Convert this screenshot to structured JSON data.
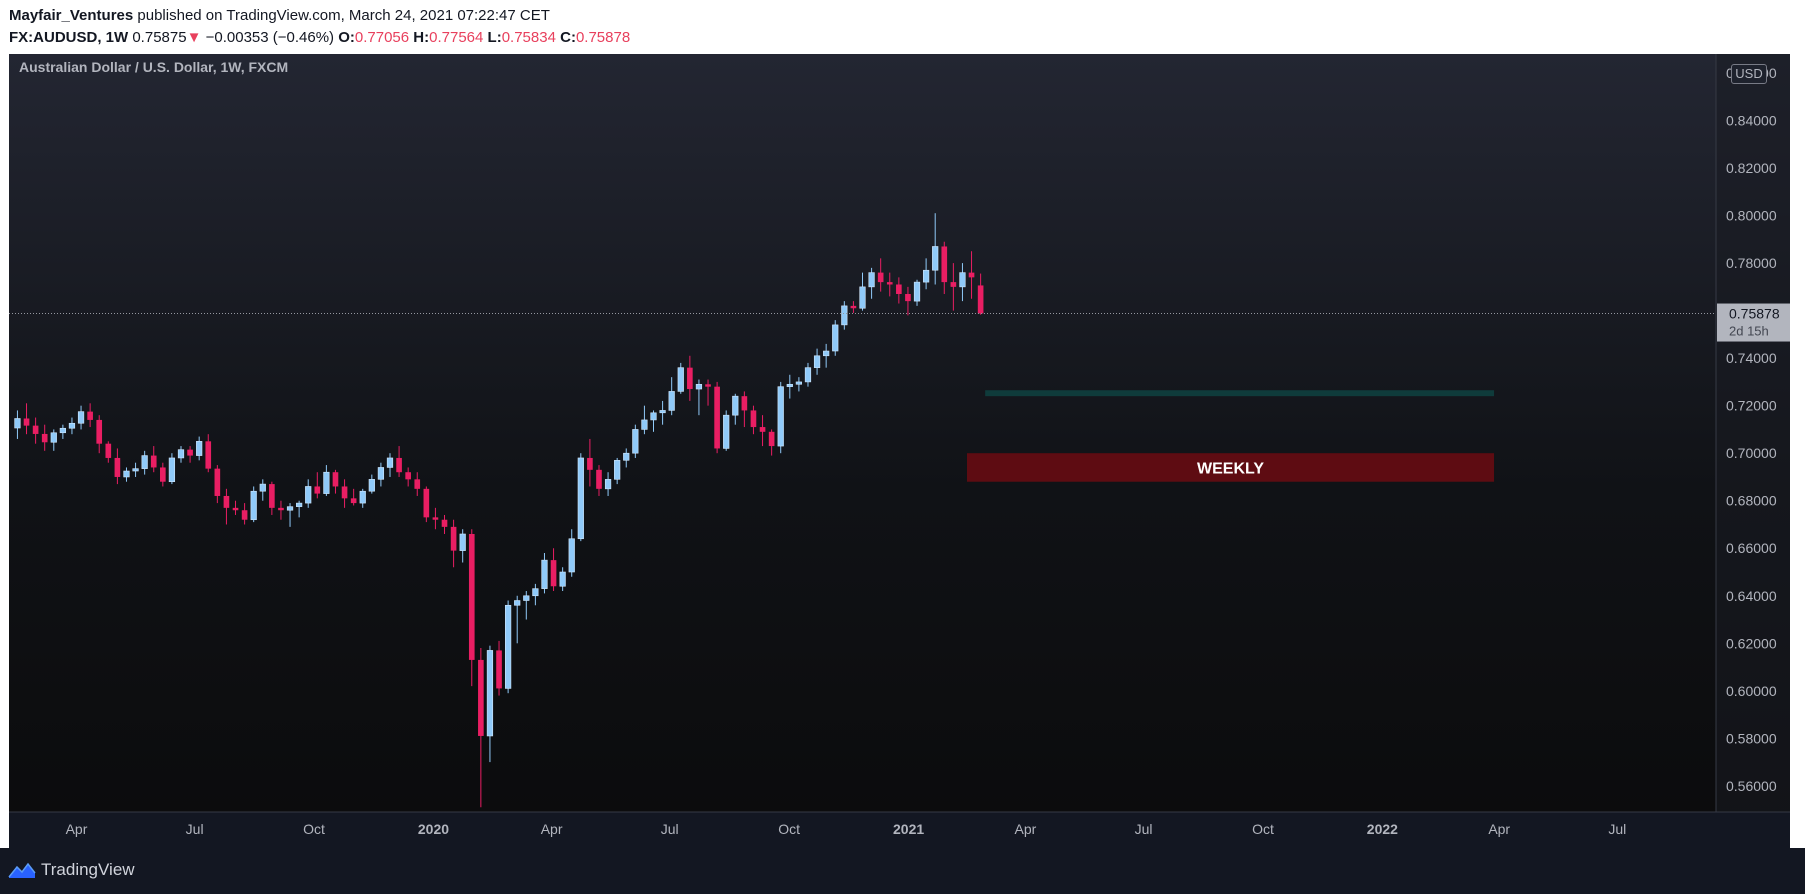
{
  "header": {
    "publisher": "Mayfair_Ventures",
    "published_text": "published on TradingView.com, March 24, 2021 07:22:47 CET",
    "symbol": "FX:AUDUSD, 1W",
    "last": "0.75875",
    "change": "−0.00353 (−0.46%)",
    "o_label": "O:",
    "o_value": "0.77056",
    "h_label": "H:",
    "h_value": "0.77564",
    "l_label": "L:",
    "l_value": "0.75834",
    "c_label": "C:",
    "c_value": "0.75878"
  },
  "colors": {
    "up": "#90caf9",
    "down": "#e91e63",
    "zone_green": "#0f3b3b",
    "zone_red": "#5e0c12",
    "price_tag": "#b2b5be"
  },
  "footer": {
    "brand": "TradingView"
  },
  "chart_data": {
    "type": "candlestick",
    "title": "Australian Dollar / U.S. Dollar, 1W, FXCM",
    "currency": "USD",
    "y_ticks": [
      "0.56000",
      "0.58000",
      "0.60000",
      "0.62000",
      "0.64000",
      "0.66000",
      "0.68000",
      "0.70000",
      "0.72000",
      "0.74000",
      "0.76000",
      "0.78000",
      "0.80000",
      "0.82000",
      "0.84000",
      "0.86000"
    ],
    "ylim": [
      0.549,
      0.868
    ],
    "x_ticks": [
      {
        "label": "Apr",
        "date": "2019-04-01",
        "bold": false
      },
      {
        "label": "Jul",
        "date": "2019-07-01",
        "bold": false
      },
      {
        "label": "Oct",
        "date": "2019-10-01",
        "bold": false
      },
      {
        "label": "2020",
        "date": "2020-01-01",
        "bold": true
      },
      {
        "label": "Apr",
        "date": "2020-04-01",
        "bold": false
      },
      {
        "label": "Jul",
        "date": "2020-07-01",
        "bold": false
      },
      {
        "label": "Oct",
        "date": "2020-10-01",
        "bold": false
      },
      {
        "label": "2021",
        "date": "2021-01-01",
        "bold": true
      },
      {
        "label": "Apr",
        "date": "2021-04-01",
        "bold": false
      },
      {
        "label": "Jul",
        "date": "2021-07-01",
        "bold": false
      },
      {
        "label": "Oct",
        "date": "2021-10-01",
        "bold": false
      },
      {
        "label": "2022",
        "date": "2022-01-01",
        "bold": true
      },
      {
        "label": "Apr",
        "date": "2022-04-01",
        "bold": false
      },
      {
        "label": "Jul",
        "date": "2022-07-01",
        "bold": false
      }
    ],
    "xlim": [
      "2019-02-08",
      "2022-09-15"
    ],
    "first_candle_date": "2019-02-11",
    "candles": [
      [
        0.7106,
        0.718,
        0.706,
        0.7146
      ],
      [
        0.7146,
        0.721,
        0.708,
        0.7116
      ],
      [
        0.7116,
        0.715,
        0.704,
        0.7081
      ],
      [
        0.7081,
        0.712,
        0.701,
        0.7046
      ],
      [
        0.7046,
        0.71,
        0.701,
        0.7086
      ],
      [
        0.7086,
        0.712,
        0.706,
        0.7105
      ],
      [
        0.7105,
        0.715,
        0.708,
        0.7126
      ],
      [
        0.7126,
        0.72,
        0.71,
        0.7175
      ],
      [
        0.7175,
        0.721,
        0.711,
        0.714
      ],
      [
        0.714,
        0.716,
        0.7,
        0.704
      ],
      [
        0.704,
        0.705,
        0.696,
        0.698
      ],
      [
        0.698,
        0.702,
        0.687,
        0.69
      ],
      [
        0.69,
        0.694,
        0.688,
        0.6925
      ],
      [
        0.6925,
        0.696,
        0.69,
        0.6935
      ],
      [
        0.6935,
        0.701,
        0.691,
        0.699
      ],
      [
        0.699,
        0.703,
        0.692,
        0.694
      ],
      [
        0.694,
        0.696,
        0.686,
        0.688
      ],
      [
        0.688,
        0.7,
        0.687,
        0.698
      ],
      [
        0.698,
        0.703,
        0.696,
        0.7015
      ],
      [
        0.7015,
        0.703,
        0.696,
        0.699
      ],
      [
        0.699,
        0.707,
        0.697,
        0.705
      ],
      [
        0.705,
        0.708,
        0.692,
        0.6935
      ],
      [
        0.6935,
        0.695,
        0.679,
        0.682
      ],
      [
        0.682,
        0.685,
        0.67,
        0.677
      ],
      [
        0.677,
        0.68,
        0.674,
        0.676
      ],
      [
        0.676,
        0.679,
        0.67,
        0.672
      ],
      [
        0.672,
        0.686,
        0.671,
        0.684
      ],
      [
        0.684,
        0.689,
        0.68,
        0.687
      ],
      [
        0.687,
        0.688,
        0.674,
        0.677
      ],
      [
        0.677,
        0.68,
        0.672,
        0.676
      ],
      [
        0.676,
        0.679,
        0.669,
        0.6775
      ],
      [
        0.6775,
        0.68,
        0.673,
        0.679
      ],
      [
        0.679,
        0.689,
        0.677,
        0.686
      ],
      [
        0.686,
        0.692,
        0.681,
        0.683
      ],
      [
        0.683,
        0.695,
        0.682,
        0.692
      ],
      [
        0.692,
        0.693,
        0.683,
        0.686
      ],
      [
        0.686,
        0.689,
        0.677,
        0.681
      ],
      [
        0.681,
        0.685,
        0.678,
        0.679
      ],
      [
        0.679,
        0.685,
        0.677,
        0.684
      ],
      [
        0.684,
        0.691,
        0.683,
        0.689
      ],
      [
        0.689,
        0.696,
        0.686,
        0.694
      ],
      [
        0.694,
        0.7,
        0.69,
        0.698
      ],
      [
        0.698,
        0.703,
        0.69,
        0.692
      ],
      [
        0.692,
        0.694,
        0.686,
        0.689
      ],
      [
        0.689,
        0.692,
        0.682,
        0.685
      ],
      [
        0.685,
        0.686,
        0.671,
        0.673
      ],
      [
        0.673,
        0.677,
        0.668,
        0.672
      ],
      [
        0.672,
        0.674,
        0.666,
        0.669
      ],
      [
        0.669,
        0.672,
        0.652,
        0.659
      ],
      [
        0.659,
        0.668,
        0.654,
        0.666
      ],
      [
        0.666,
        0.668,
        0.602,
        0.613
      ],
      [
        0.613,
        0.618,
        0.551,
        0.581
      ],
      [
        0.581,
        0.619,
        0.57,
        0.617
      ],
      [
        0.617,
        0.621,
        0.598,
        0.601
      ],
      [
        0.601,
        0.638,
        0.599,
        0.636
      ],
      [
        0.636,
        0.64,
        0.62,
        0.638
      ],
      [
        0.638,
        0.642,
        0.63,
        0.64
      ],
      [
        0.64,
        0.645,
        0.636,
        0.643
      ],
      [
        0.643,
        0.658,
        0.641,
        0.655
      ],
      [
        0.655,
        0.66,
        0.642,
        0.644
      ],
      [
        0.644,
        0.652,
        0.642,
        0.65
      ],
      [
        0.65,
        0.668,
        0.648,
        0.664
      ],
      [
        0.664,
        0.7,
        0.663,
        0.698
      ],
      [
        0.698,
        0.706,
        0.686,
        0.693
      ],
      [
        0.693,
        0.695,
        0.682,
        0.685
      ],
      [
        0.685,
        0.692,
        0.682,
        0.689
      ],
      [
        0.689,
        0.698,
        0.687,
        0.697
      ],
      [
        0.697,
        0.702,
        0.694,
        0.7
      ],
      [
        0.7,
        0.712,
        0.698,
        0.71
      ],
      [
        0.71,
        0.72,
        0.708,
        0.714
      ],
      [
        0.714,
        0.718,
        0.709,
        0.717
      ],
      [
        0.717,
        0.722,
        0.712,
        0.718
      ],
      [
        0.718,
        0.732,
        0.716,
        0.726
      ],
      [
        0.726,
        0.738,
        0.725,
        0.736
      ],
      [
        0.736,
        0.741,
        0.722,
        0.727
      ],
      [
        0.727,
        0.731,
        0.716,
        0.729
      ],
      [
        0.729,
        0.731,
        0.72,
        0.728
      ],
      [
        0.728,
        0.73,
        0.7,
        0.702
      ],
      [
        0.702,
        0.718,
        0.701,
        0.716
      ],
      [
        0.716,
        0.725,
        0.712,
        0.724
      ],
      [
        0.724,
        0.726,
        0.711,
        0.718
      ],
      [
        0.718,
        0.72,
        0.708,
        0.711
      ],
      [
        0.711,
        0.716,
        0.703,
        0.709
      ],
      [
        0.709,
        0.71,
        0.699,
        0.703
      ],
      [
        0.703,
        0.73,
        0.7,
        0.728
      ],
      [
        0.728,
        0.733,
        0.723,
        0.729
      ],
      [
        0.729,
        0.732,
        0.726,
        0.73
      ],
      [
        0.73,
        0.738,
        0.728,
        0.736
      ],
      [
        0.736,
        0.744,
        0.733,
        0.741
      ],
      [
        0.741,
        0.746,
        0.736,
        0.743
      ],
      [
        0.743,
        0.756,
        0.741,
        0.754
      ],
      [
        0.754,
        0.764,
        0.752,
        0.762
      ],
      [
        0.762,
        0.764,
        0.759,
        0.761
      ],
      [
        0.761,
        0.776,
        0.76,
        0.77
      ],
      [
        0.77,
        0.778,
        0.765,
        0.776
      ],
      [
        0.776,
        0.782,
        0.768,
        0.772
      ],
      [
        0.772,
        0.776,
        0.766,
        0.771
      ],
      [
        0.771,
        0.774,
        0.763,
        0.767
      ],
      [
        0.767,
        0.77,
        0.758,
        0.764
      ],
      [
        0.764,
        0.773,
        0.762,
        0.772
      ],
      [
        0.772,
        0.782,
        0.769,
        0.777
      ],
      [
        0.777,
        0.801,
        0.771,
        0.787
      ],
      [
        0.787,
        0.789,
        0.767,
        0.772
      ],
      [
        0.772,
        0.78,
        0.76,
        0.77
      ],
      [
        0.77,
        0.78,
        0.764,
        0.776
      ],
      [
        0.776,
        0.785,
        0.765,
        0.774
      ],
      [
        0.7706,
        0.7756,
        0.7583,
        0.7588
      ]
    ],
    "last_price": "0.75878",
    "countdown": "2d 15h",
    "zones": [
      {
        "kind": "support-green",
        "y_top": 0.7265,
        "y_bottom": 0.724,
        "x_start": "2021-03-01",
        "x_end": "2022-03-28",
        "label": ""
      },
      {
        "kind": "support-red",
        "y_top": 0.7,
        "y_bottom": 0.688,
        "x_start": "2021-02-15",
        "x_end": "2022-03-28",
        "label": "WEEKLY"
      }
    ]
  }
}
